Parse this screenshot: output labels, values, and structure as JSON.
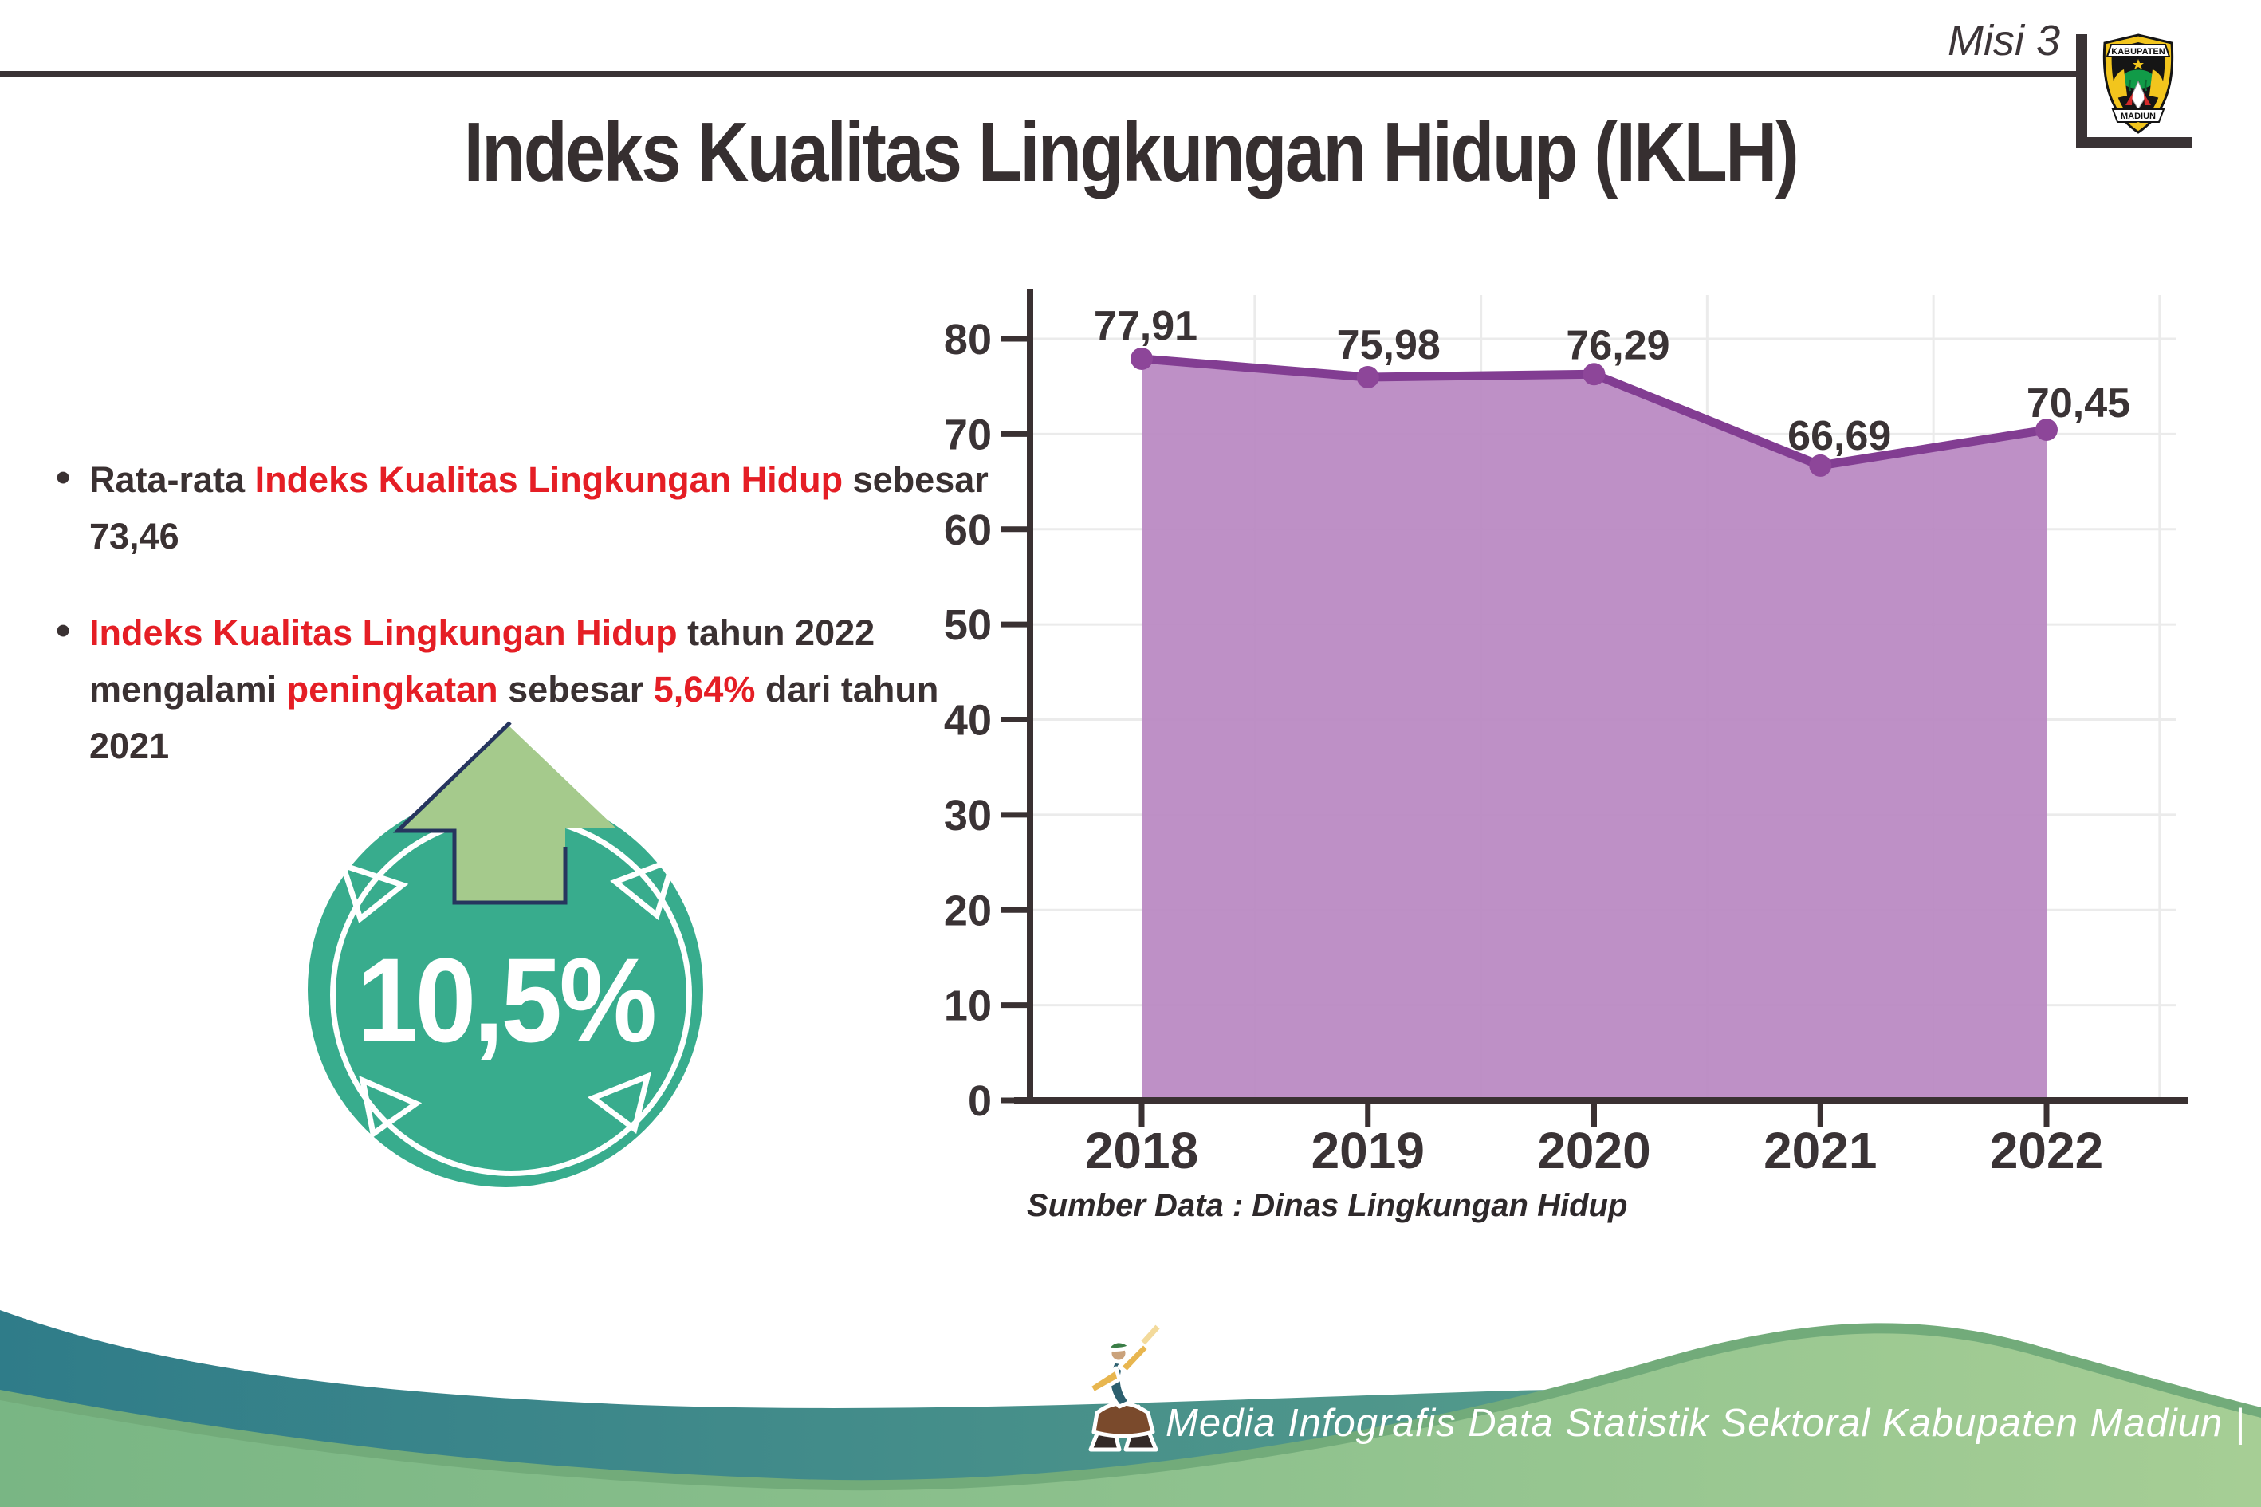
{
  "header": {
    "mission_label": "Misi 3",
    "logo": {
      "top_text": "KABUPATEN",
      "bottom_text": "MADIUN"
    }
  },
  "title": "Indeks Kualitas Lingkungan Hidup (IKLH)",
  "bullet_marker": "•",
  "bullets": [
    {
      "segments": [
        {
          "text": "Rata-rata ",
          "color": "dark"
        },
        {
          "text": "Indeks Kualitas Lingkungan Hidup",
          "color": "red"
        },
        {
          "text": " sebesar 73,46",
          "color": "dark"
        }
      ]
    },
    {
      "segments": [
        {
          "text": "Indeks Kualitas Lingkungan Hidup",
          "color": "red"
        },
        {
          "text": " tahun 2022 mengalami ",
          "color": "dark"
        },
        {
          "text": "peningkatan",
          "color": "red"
        },
        {
          "text": " sebesar ",
          "color": "dark"
        },
        {
          "text": "5,64%",
          "color": "red"
        },
        {
          "text": " dari tahun 2021",
          "color": "dark"
        }
      ]
    }
  ],
  "badge": {
    "value": "10,5%",
    "circle_color": "#38ac8d",
    "arrow_color": "#a5ca8c",
    "arrow_outline_color": "#26355e"
  },
  "chart_data": {
    "type": "area",
    "title": "",
    "categories": [
      "2018",
      "2019",
      "2020",
      "2021",
      "2022"
    ],
    "values": [
      77.91,
      75.98,
      76.29,
      66.69,
      70.45
    ],
    "value_labels": [
      "77,91",
      "75,98",
      "76,29",
      "66,69",
      "70,45"
    ],
    "ylim": [
      0,
      80
    ],
    "ytick_step": 10,
    "grid": true,
    "legend": "none",
    "line_color": "#823d92",
    "fill_color": "#b988c2",
    "marker_color": "#8d4699",
    "grid_color": "#ebebeb",
    "axis_color": "#3a3132",
    "source_note": "Sumber Data : Dinas Lingkungan Hidup"
  },
  "footer": {
    "text": "Media Infografis Data Statistik Sektoral Kabupaten Madiun |",
    "teal_color": "#37808a",
    "green_color": "#8fc28e"
  }
}
